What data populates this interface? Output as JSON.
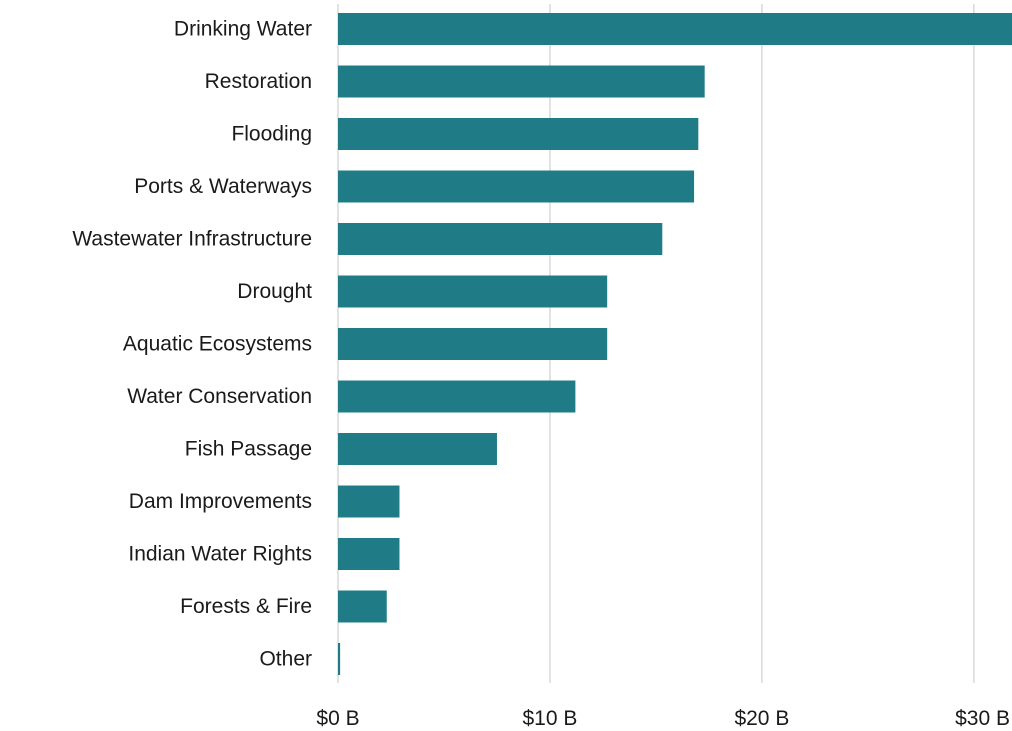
{
  "chart_data": {
    "type": "bar",
    "orientation": "horizontal",
    "categories": [
      "Drinking Water",
      "Restoration",
      "Flooding",
      "Ports & Waterways",
      "Wastewater Infrastructure",
      "Drought",
      "Aquatic Ecosystems",
      "Water Conservation",
      "Fish Passage",
      "Dam Improvements",
      "Indian Water Rights",
      "Forests & Fire",
      "Other"
    ],
    "values": [
      31.8,
      17.3,
      17.0,
      16.8,
      15.3,
      12.7,
      12.7,
      11.2,
      7.5,
      2.9,
      2.9,
      2.3,
      0.1
    ],
    "unit": "billion USD",
    "xlim": [
      0,
      31.8
    ],
    "x_ticks": [
      0,
      10,
      20,
      30
    ],
    "x_tick_labels": [
      "$0 B",
      "$10 B",
      "$20 B",
      "$30 B"
    ],
    "title": "",
    "xlabel": "",
    "ylabel": "",
    "grid": "vertical",
    "legend": "none",
    "bar_color": "#1f7c87",
    "grid_color": "#d9d9d9",
    "text_color": "#1a1a1a"
  }
}
